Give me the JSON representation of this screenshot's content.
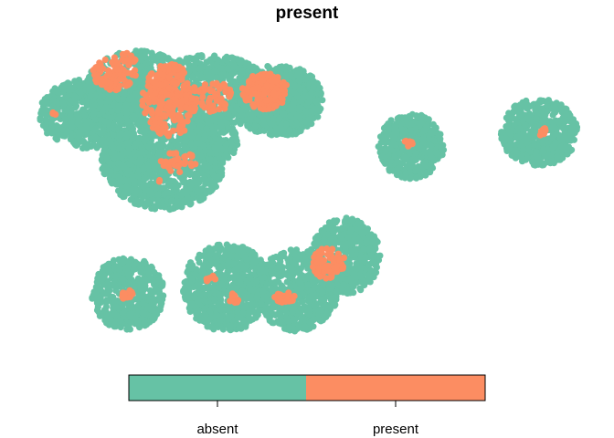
{
  "chart_data": {
    "type": "scatter",
    "title": "present",
    "categories": [
      "absent",
      "present"
    ],
    "colors": {
      "absent": "#66C2A5",
      "present": "#FC8D62"
    },
    "legend": {
      "placement": "bottom",
      "style": "color-bar"
    },
    "axes": "none",
    "grid": false
  }
}
